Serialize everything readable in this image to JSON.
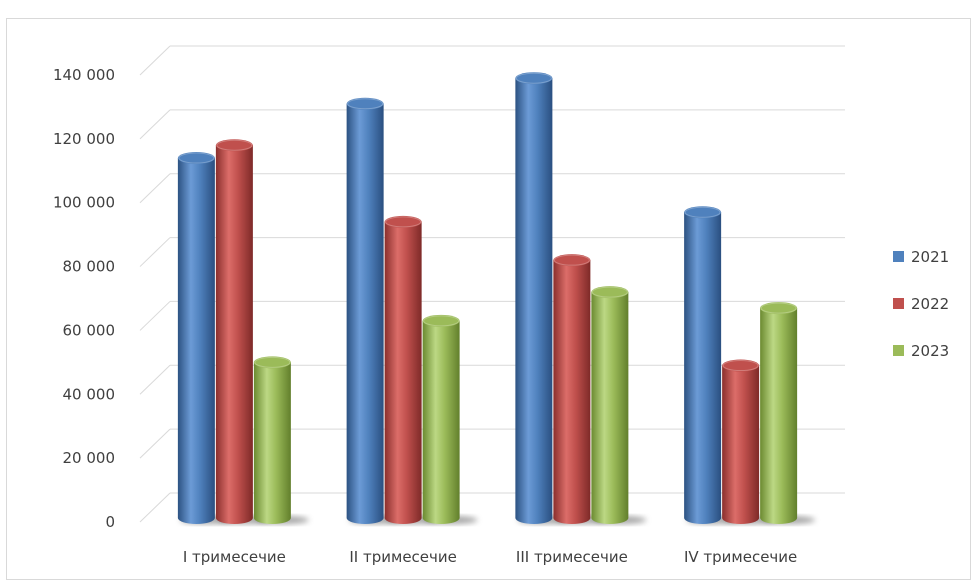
{
  "chart_data": {
    "type": "bar",
    "categories": [
      "I тримесечие",
      "II тримесечие",
      "III тримесечие",
      "IV тримесечие"
    ],
    "series": [
      {
        "name": "2021",
        "color": "#4f81bd",
        "values": [
          114000,
          131000,
          139000,
          97000
        ]
      },
      {
        "name": "2022",
        "color": "#c0504d",
        "values": [
          118000,
          94000,
          82000,
          49000
        ]
      },
      {
        "name": "2023",
        "color": "#9bbb59",
        "values": [
          50000,
          63000,
          72000,
          67000
        ]
      }
    ],
    "yticks": [
      "0",
      "20 000",
      "40 000",
      "60 000",
      "80 000",
      "100 000",
      "120 000",
      "140 000"
    ],
    "ylim": [
      0,
      140000
    ],
    "grid": true,
    "legend_position": "right",
    "title": "",
    "xlabel": "",
    "ylabel": ""
  }
}
